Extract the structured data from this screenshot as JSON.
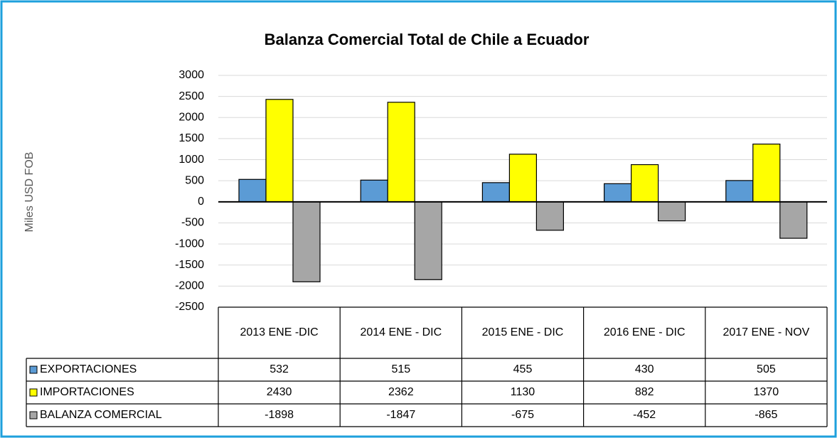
{
  "chart_data": {
    "type": "bar",
    "title": "Balanza Comercial Total de Chile a Ecuador",
    "y_axis_label": "Miles USD FOB",
    "categories": [
      "2013 ENE -DIC",
      "2014 ENE - DIC",
      "2015 ENE - DIC",
      "2016 ENE - DIC",
      "2017 ENE - NOV"
    ],
    "series": [
      {
        "name": "EXPORTACIONES",
        "color": "#5b9bd5",
        "values": [
          532,
          515,
          455,
          430,
          505
        ]
      },
      {
        "name": "IMPORTACIONES",
        "color": "#ffff00",
        "values": [
          2430,
          2362,
          1130,
          882,
          1370
        ]
      },
      {
        "name": "BALANZA COMERCIAL",
        "color": "#a6a6a6",
        "values": [
          -1898,
          -1847,
          -675,
          -452,
          -865
        ]
      }
    ],
    "ylim": [
      -2500,
      3000
    ],
    "yticks": [
      -2500,
      -2000,
      -1500,
      -1000,
      -500,
      0,
      500,
      1000,
      1500,
      2000,
      2500,
      3000
    ],
    "grid": true
  }
}
